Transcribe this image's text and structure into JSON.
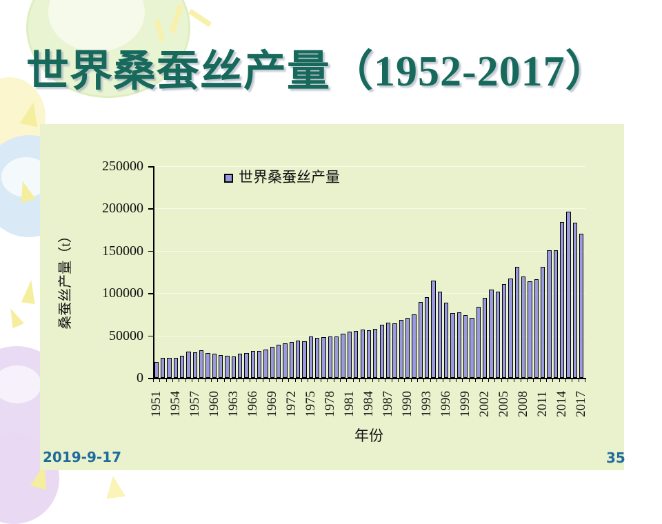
{
  "slide": {
    "title": "世界桑蚕丝产量（1952-2017）",
    "footer_date": "2019-9-17",
    "page_number": "35"
  },
  "colors": {
    "title_text": "#17695c",
    "footer_text": "#1f6b9d",
    "chart_background": "#e9f2cc",
    "bar_fill": "#9a9ae0",
    "bar_border": "#000000",
    "axis": "#000000",
    "gridline": "#f7fbe8"
  },
  "chart_data": {
    "type": "bar",
    "title": "",
    "legend": "世界桑蚕丝产量",
    "legend_position": "top-left-inside",
    "xlabel": "年份",
    "ylabel": "桑蚕丝产量（t）",
    "ylim": [
      0,
      250000
    ],
    "yticks": [
      0,
      50000,
      100000,
      150000,
      200000,
      250000
    ],
    "grid": "horizontal",
    "xtick_labels": [
      "1951",
      "1954",
      "1957",
      "1960",
      "1963",
      "1966",
      "1969",
      "1972",
      "1975",
      "1978",
      "1981",
      "1984",
      "1987",
      "1990",
      "1993",
      "1996",
      "1999",
      "2002",
      "2005",
      "2008",
      "2011",
      "2014",
      "2017"
    ],
    "categories": [
      1951,
      1952,
      1953,
      1954,
      1955,
      1956,
      1957,
      1958,
      1959,
      1960,
      1961,
      1962,
      1963,
      1964,
      1965,
      1966,
      1967,
      1968,
      1969,
      1970,
      1971,
      1972,
      1973,
      1974,
      1975,
      1976,
      1977,
      1978,
      1979,
      1980,
      1981,
      1982,
      1983,
      1984,
      1985,
      1986,
      1987,
      1988,
      1989,
      1990,
      1991,
      1992,
      1993,
      1994,
      1995,
      1996,
      1997,
      1998,
      1999,
      2000,
      2001,
      2002,
      2003,
      2004,
      2005,
      2006,
      2007,
      2008,
      2009,
      2010,
      2011,
      2012,
      2013,
      2014,
      2015,
      2016,
      2017
    ],
    "values": [
      19000,
      24000,
      23500,
      23500,
      26000,
      31000,
      30000,
      32500,
      29500,
      28500,
      26500,
      26000,
      25000,
      28500,
      29500,
      31500,
      32000,
      33500,
      37000,
      39000,
      40500,
      42500,
      44000,
      43000,
      48500,
      47500,
      48000,
      49000,
      48500,
      52000,
      54500,
      55000,
      57000,
      56000,
      58000,
      63000,
      65000,
      64500,
      68500,
      70500,
      75000,
      89500,
      95000,
      114500,
      101500,
      88500,
      76500,
      77000,
      74000,
      70500,
      83500,
      94500,
      104500,
      101500,
      110500,
      117000,
      131500,
      120000,
      114000,
      116500,
      131000,
      150500,
      151000,
      184000,
      196500,
      183500,
      170500
    ]
  }
}
